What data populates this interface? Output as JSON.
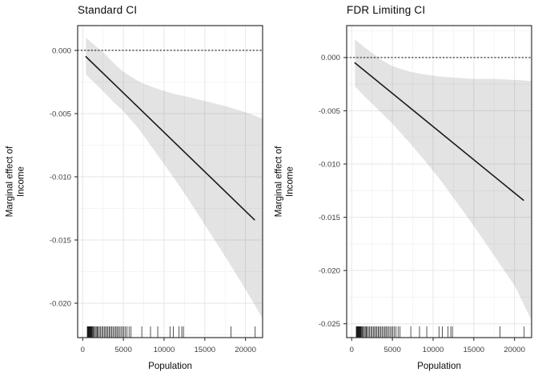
{
  "figure_title": "",
  "colors": {
    "band_fill": "rgba(80,80,80,0.16)",
    "line": "#1a1a1a",
    "reference_line": "#1a1a1a",
    "grid_major": "#e6e6e6",
    "grid_minor": "#f2f2f2",
    "panel_border": "#333333",
    "tick_mark": "#333333",
    "tick_label": "#404040",
    "rug": "#1a1a1a",
    "background": "#ffffff"
  },
  "chart_data": [
    {
      "type": "line",
      "title": "Standard CI",
      "xlabel": "Population",
      "ylabel": "Marginal effect of Income",
      "ylabel_lines": [
        "Marginal effect of",
        "Income"
      ],
      "legend": "none",
      "grid": "on",
      "xlim": [
        -620,
        22100
      ],
      "ylim": [
        0.00196,
        -0.02272
      ],
      "x_ticks": [
        0,
        5000,
        10000,
        15000,
        20000
      ],
      "x_tick_labels": [
        "0",
        "5000",
        "10000",
        "15000",
        "20000"
      ],
      "y_ticks": [
        0,
        -0.005,
        -0.01,
        -0.015,
        -0.02
      ],
      "y_tick_labels": [
        "0.000",
        "-0.005",
        "-0.010",
        "-0.015",
        "-0.020"
      ],
      "reference_line_y": 0,
      "line": {
        "x": [
          400,
          21100
        ],
        "y": [
          -0.0005,
          -0.0134
        ]
      },
      "band": [
        [
          400,
          0.001,
          -0.0019
        ],
        [
          1500,
          0.0004,
          -0.0026
        ],
        [
          2600,
          -0.0002,
          -0.0033
        ],
        [
          3800,
          -0.001,
          -0.0041
        ],
        [
          5000,
          -0.0017,
          -0.0048
        ],
        [
          7000,
          -0.0025,
          -0.0063
        ],
        [
          9000,
          -0.003,
          -0.0081
        ],
        [
          11000,
          -0.0034,
          -0.0099
        ],
        [
          13000,
          -0.0037,
          -0.0118
        ],
        [
          15000,
          -0.004,
          -0.0138
        ],
        [
          17500,
          -0.0044,
          -0.0163
        ],
        [
          20000,
          -0.0049,
          -0.0189
        ],
        [
          22100,
          -0.0054,
          -0.0212
        ]
      ],
      "rug_x": [
        560,
        600,
        640,
        680,
        700,
        730,
        760,
        790,
        820,
        850,
        880,
        910,
        950,
        990,
        1030,
        1080,
        1140,
        1230,
        1320,
        1420,
        1540,
        1660,
        1780,
        1900,
        2050,
        2200,
        2350,
        2500,
        2650,
        2800,
        2950,
        3100,
        3250,
        3400,
        3560,
        3720,
        3880,
        4040,
        4200,
        4360,
        4520,
        4700,
        4880,
        5060,
        5250,
        5450,
        5700,
        5940,
        7260,
        8330,
        9220,
        10720,
        11140,
        11840,
        12170,
        12370,
        18210,
        21190
      ]
    },
    {
      "type": "line",
      "title": "FDR Limiting CI",
      "xlabel": "Population",
      "ylabel": "Marginal effect of Income",
      "ylabel_lines": [
        "Marginal effect of",
        "Income"
      ],
      "legend": "none",
      "grid": "on",
      "xlim": [
        -620,
        22100
      ],
      "ylim": [
        0.003,
        -0.0263
      ],
      "x_ticks": [
        0,
        5000,
        10000,
        15000,
        20000
      ],
      "x_tick_labels": [
        "0",
        "5000",
        "10000",
        "15000",
        "20000"
      ],
      "y_ticks": [
        0,
        -0.005,
        -0.01,
        -0.015,
        -0.02,
        -0.025
      ],
      "y_tick_labels": [
        "0.000",
        "-0.005",
        "-0.010",
        "-0.015",
        "-0.020",
        "-0.025"
      ],
      "reference_line_y": 0,
      "line": {
        "x": [
          400,
          21100
        ],
        "y": [
          -0.0005,
          -0.0134
        ]
      },
      "band": [
        [
          400,
          0.0017,
          -0.0027
        ],
        [
          1500,
          0.001,
          -0.0036
        ],
        [
          2600,
          0.0004,
          -0.0044
        ],
        [
          3800,
          -0.0003,
          -0.0053
        ],
        [
          5000,
          -0.0008,
          -0.0062
        ],
        [
          7000,
          -0.0013,
          -0.0079
        ],
        [
          9000,
          -0.0016,
          -0.0097
        ],
        [
          11000,
          -0.0018,
          -0.0116
        ],
        [
          13000,
          -0.0019,
          -0.0137
        ],
        [
          15000,
          -0.002,
          -0.0158
        ],
        [
          17500,
          -0.002,
          -0.0186
        ],
        [
          20000,
          -0.0021,
          -0.0214
        ],
        [
          22100,
          -0.0022,
          -0.0247
        ]
      ],
      "rug_x": [
        560,
        600,
        640,
        680,
        700,
        730,
        760,
        790,
        820,
        850,
        880,
        910,
        950,
        990,
        1030,
        1080,
        1140,
        1230,
        1320,
        1420,
        1540,
        1660,
        1780,
        1900,
        2050,
        2200,
        2350,
        2500,
        2650,
        2800,
        2950,
        3100,
        3250,
        3400,
        3560,
        3720,
        3880,
        4040,
        4200,
        4360,
        4520,
        4700,
        4880,
        5060,
        5250,
        5450,
        5700,
        5940,
        7260,
        8330,
        9220,
        10720,
        11140,
        11840,
        12170,
        12370,
        18210,
        21190
      ]
    }
  ]
}
